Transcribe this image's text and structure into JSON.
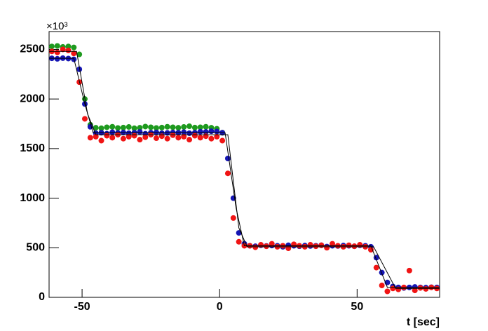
{
  "chart_data": {
    "type": "scatter",
    "y_multiplier": "×10³",
    "xlabel": "t [sec]",
    "x": [
      -61,
      -59,
      -57,
      -55,
      -53,
      -51,
      -49,
      -47,
      -45,
      -43,
      -41,
      -39,
      -37,
      -35,
      -33,
      -31,
      -29,
      -27,
      -25,
      -23,
      -21,
      -19,
      -17,
      -15,
      -13,
      -11,
      -9,
      -7,
      -5,
      -3,
      -1,
      1,
      3,
      5,
      7,
      9,
      11,
      13,
      15,
      17,
      19,
      21,
      23,
      25,
      27,
      29,
      31,
      33,
      35,
      37,
      39,
      41,
      43,
      45,
      47,
      49,
      51,
      53,
      55,
      57,
      59,
      61,
      63,
      65,
      67,
      69,
      71,
      73,
      75,
      77,
      79
    ],
    "series": [
      {
        "color": "#1e9a1e",
        "values": [
          2530,
          2535,
          2525,
          2530,
          2520,
          2450,
          2000,
          1740,
          1710,
          1705,
          1715,
          1720,
          1708,
          1712,
          1718,
          1705,
          1710,
          1722,
          1715,
          1708,
          1712,
          1720,
          1715,
          1710,
          1718,
          1725,
          1712,
          1715,
          1720,
          1710,
          1700,
          1660,
          null,
          null,
          null,
          null,
          null,
          null,
          null,
          null,
          null,
          null,
          null,
          null,
          null,
          null,
          null,
          null,
          null,
          null,
          null,
          null,
          null,
          null,
          null,
          null,
          null,
          null,
          null,
          null,
          null,
          null,
          null,
          null,
          null,
          null,
          null,
          null,
          null,
          null,
          null
        ]
      },
      {
        "color": "#1515b4",
        "values": [
          2410,
          2405,
          2412,
          2408,
          2400,
          2300,
          1950,
          1720,
          1655,
          1660,
          1650,
          1665,
          1658,
          1662,
          1655,
          1660,
          1668,
          1650,
          1660,
          1663,
          1655,
          1658,
          1662,
          1660,
          1665,
          1655,
          1660,
          1670,
          1668,
          1675,
          1672,
          1660,
          1400,
          1000,
          650,
          540,
          520,
          515,
          525,
          518,
          522,
          520,
          510,
          525,
          520,
          515,
          522,
          518,
          520,
          525,
          512,
          520,
          518,
          522,
          520,
          515,
          525,
          520,
          510,
          400,
          250,
          150,
          110,
          100,
          95,
          100,
          105,
          100,
          98,
          102,
          100
        ]
      },
      {
        "color": "#f01414",
        "values": [
          2480,
          2470,
          2500,
          2490,
          2460,
          2170,
          1800,
          1610,
          1620,
          1580,
          1630,
          1610,
          1640,
          1600,
          1620,
          1630,
          1590,
          1615,
          1640,
          1605,
          1625,
          1600,
          1635,
          1610,
          1620,
          1590,
          1630,
          1610,
          1625,
          1600,
          1620,
          1580,
          1250,
          800,
          560,
          520,
          520,
          505,
          530,
          515,
          540,
          510,
          520,
          495,
          535,
          520,
          510,
          530,
          515,
          525,
          500,
          540,
          520,
          510,
          525,
          515,
          530,
          510,
          480,
          300,
          120,
          60,
          90,
          80,
          100,
          270,
          70,
          95,
          85,
          100,
          90
        ]
      }
    ],
    "fits": [
      {
        "color": "#000000",
        "x": [
          -62,
          -53,
          -49,
          -46,
          2,
          6,
          9,
          55,
          61,
          80
        ],
        "values": [
          2410,
          2410,
          1950,
          1660,
          1660,
          900,
          520,
          520,
          100,
          100
        ]
      },
      {
        "color": "#000000",
        "x": [
          -62,
          -52,
          -48,
          -45,
          3,
          7,
          10,
          56,
          64,
          80
        ],
        "values": [
          2480,
          2480,
          1850,
          1640,
          1640,
          700,
          510,
          510,
          90,
          90
        ]
      }
    ],
    "xlim": [
      -62,
      80
    ],
    "ylim": [
      0,
      2680
    ],
    "xticks": [
      -50,
      0,
      50
    ],
    "yticks": [
      0,
      500,
      1000,
      1500,
      2000,
      2500
    ]
  }
}
